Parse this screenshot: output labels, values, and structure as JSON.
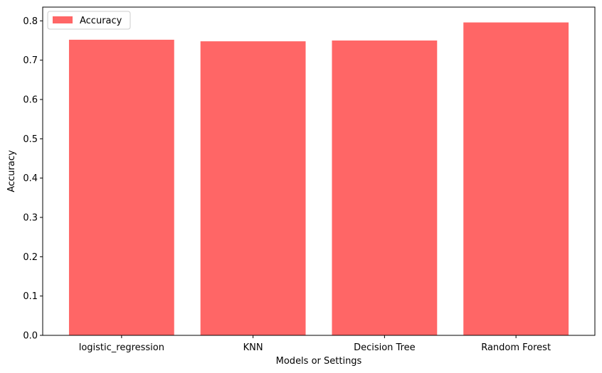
{
  "chart_data": {
    "type": "bar",
    "categories": [
      "logistic_regression",
      "KNN",
      "Decision Tree",
      "Random Forest"
    ],
    "series": [
      {
        "name": "Accuracy",
        "values": [
          0.752,
          0.748,
          0.75,
          0.796
        ]
      }
    ],
    "xlabel": "Models or Settings",
    "ylabel": "Accuracy",
    "ylim": [
      0,
      0.835
    ],
    "yticks": [
      0.0,
      0.1,
      0.2,
      0.3,
      0.4,
      0.5,
      0.6,
      0.7,
      0.8
    ],
    "ytick_labels": [
      "0.0",
      "0.1",
      "0.2",
      "0.3",
      "0.4",
      "0.5",
      "0.6",
      "0.7",
      "0.8"
    ],
    "grid": false,
    "legend_position": "top-left",
    "colors": {
      "bar": "#ff6666",
      "axis": "#000000"
    }
  }
}
